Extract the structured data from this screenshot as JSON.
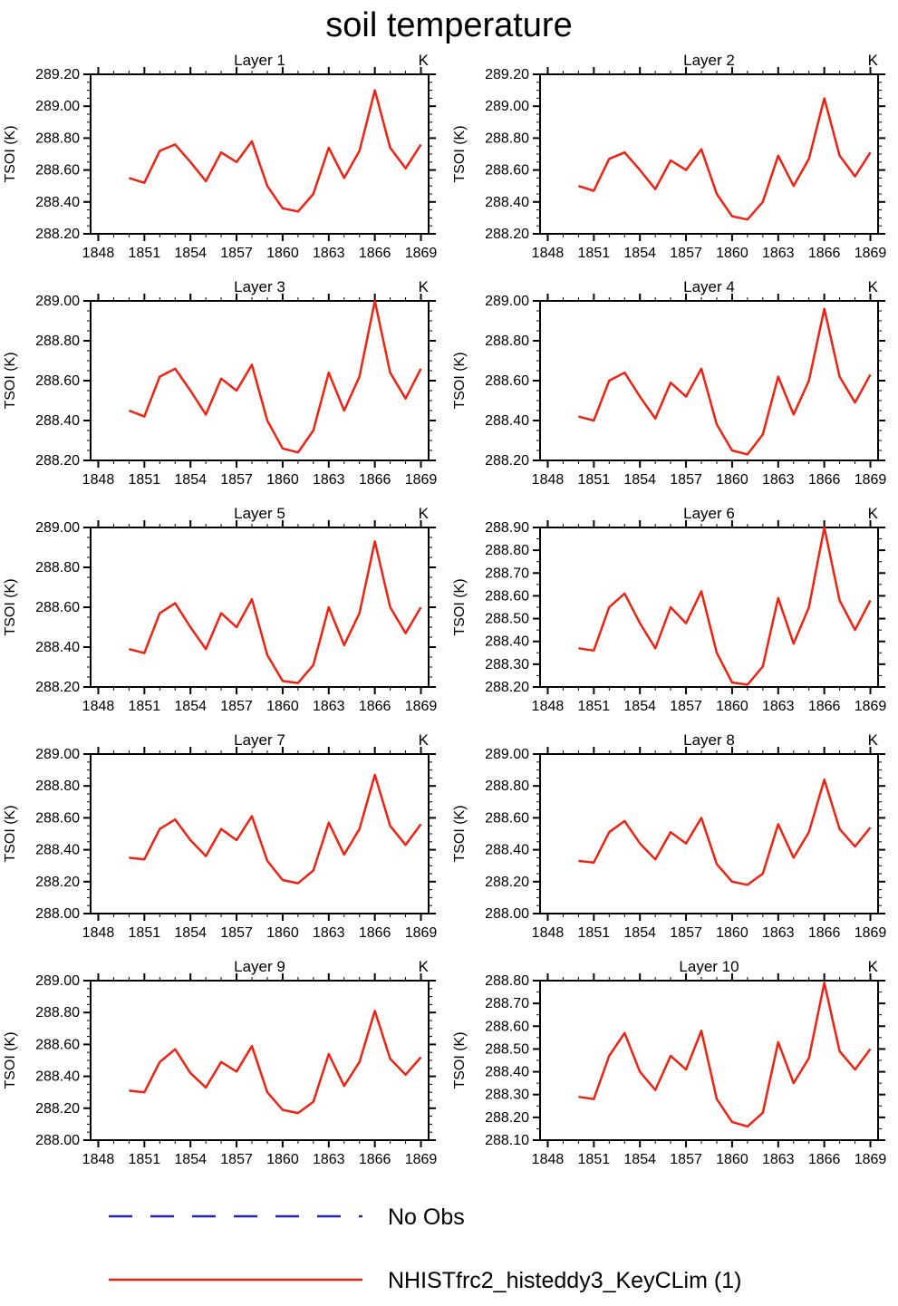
{
  "title": "soil temperature",
  "series_color": "#ee2211",
  "legend": [
    {
      "label": "No Obs",
      "color": "#2222cc",
      "style": "dashed"
    },
    {
      "label": "NHISTfrc2_histeddy3_KeyCLim (1)",
      "color": "#ee2211",
      "style": "solid"
    }
  ],
  "chart_data": [
    {
      "type": "line",
      "title": "Layer 1",
      "unit": "K",
      "ylabel": "TSOI (K)",
      "xlabel": "",
      "xlim": [
        1847.5,
        1869.5
      ],
      "xticks": [
        1848,
        1851,
        1854,
        1857,
        1860,
        1863,
        1866,
        1869
      ],
      "ylim": [
        288.2,
        289.2
      ],
      "ytick_step": 0.2,
      "x": [
        1850,
        1851,
        1852,
        1853,
        1854,
        1855,
        1856,
        1857,
        1858,
        1859,
        1860,
        1861,
        1862,
        1863,
        1864,
        1865,
        1866,
        1867,
        1868,
        1869
      ],
      "values": [
        288.55,
        288.52,
        288.72,
        288.76,
        288.65,
        288.53,
        288.71,
        288.65,
        288.78,
        288.5,
        288.36,
        288.34,
        288.45,
        288.74,
        288.55,
        288.72,
        289.1,
        288.74,
        288.61,
        288.76
      ]
    },
    {
      "type": "line",
      "title": "Layer 2",
      "unit": "K",
      "ylabel": "TSOI (K)",
      "xlabel": "",
      "xlim": [
        1847.5,
        1869.5
      ],
      "xticks": [
        1848,
        1851,
        1854,
        1857,
        1860,
        1863,
        1866,
        1869
      ],
      "ylim": [
        288.2,
        289.2
      ],
      "ytick_step": 0.2,
      "x": [
        1850,
        1851,
        1852,
        1853,
        1854,
        1855,
        1856,
        1857,
        1858,
        1859,
        1860,
        1861,
        1862,
        1863,
        1864,
        1865,
        1866,
        1867,
        1868,
        1869
      ],
      "values": [
        288.5,
        288.47,
        288.67,
        288.71,
        288.6,
        288.48,
        288.66,
        288.6,
        288.73,
        288.45,
        288.31,
        288.29,
        288.4,
        288.69,
        288.5,
        288.67,
        289.05,
        288.69,
        288.56,
        288.71
      ]
    },
    {
      "type": "line",
      "title": "Layer 3",
      "unit": "K",
      "ylabel": "TSOI (K)",
      "xlabel": "",
      "xlim": [
        1847.5,
        1869.5
      ],
      "xticks": [
        1848,
        1851,
        1854,
        1857,
        1860,
        1863,
        1866,
        1869
      ],
      "ylim": [
        288.2,
        289.0
      ],
      "ytick_step": 0.2,
      "x": [
        1850,
        1851,
        1852,
        1853,
        1854,
        1855,
        1856,
        1857,
        1858,
        1859,
        1860,
        1861,
        1862,
        1863,
        1864,
        1865,
        1866,
        1867,
        1868,
        1869
      ],
      "values": [
        288.45,
        288.42,
        288.62,
        288.66,
        288.55,
        288.43,
        288.61,
        288.55,
        288.68,
        288.4,
        288.26,
        288.24,
        288.35,
        288.64,
        288.45,
        288.62,
        289.0,
        288.64,
        288.51,
        288.66
      ]
    },
    {
      "type": "line",
      "title": "Layer 4",
      "unit": "K",
      "ylabel": "TSOI (K)",
      "xlabel": "",
      "xlim": [
        1847.5,
        1869.5
      ],
      "xticks": [
        1848,
        1851,
        1854,
        1857,
        1860,
        1863,
        1866,
        1869
      ],
      "ylim": [
        288.2,
        289.0
      ],
      "ytick_step": 0.2,
      "x": [
        1850,
        1851,
        1852,
        1853,
        1854,
        1855,
        1856,
        1857,
        1858,
        1859,
        1860,
        1861,
        1862,
        1863,
        1864,
        1865,
        1866,
        1867,
        1868,
        1869
      ],
      "values": [
        288.42,
        288.4,
        288.6,
        288.64,
        288.52,
        288.41,
        288.59,
        288.52,
        288.66,
        288.38,
        288.25,
        288.23,
        288.33,
        288.62,
        288.43,
        288.6,
        288.96,
        288.62,
        288.49,
        288.63
      ]
    },
    {
      "type": "line",
      "title": "Layer 5",
      "unit": "K",
      "ylabel": "TSOI (K)",
      "xlabel": "",
      "xlim": [
        1847.5,
        1869.5
      ],
      "xticks": [
        1848,
        1851,
        1854,
        1857,
        1860,
        1863,
        1866,
        1869
      ],
      "ylim": [
        288.2,
        289.0
      ],
      "ytick_step": 0.2,
      "x": [
        1850,
        1851,
        1852,
        1853,
        1854,
        1855,
        1856,
        1857,
        1858,
        1859,
        1860,
        1861,
        1862,
        1863,
        1864,
        1865,
        1866,
        1867,
        1868,
        1869
      ],
      "values": [
        288.39,
        288.37,
        288.57,
        288.62,
        288.5,
        288.39,
        288.57,
        288.5,
        288.64,
        288.36,
        288.23,
        288.22,
        288.31,
        288.6,
        288.41,
        288.57,
        288.93,
        288.6,
        288.47,
        288.6
      ]
    },
    {
      "type": "line",
      "title": "Layer 6",
      "unit": "K",
      "ylabel": "TSOI (K)",
      "xlabel": "",
      "xlim": [
        1847.5,
        1869.5
      ],
      "xticks": [
        1848,
        1851,
        1854,
        1857,
        1860,
        1863,
        1866,
        1869
      ],
      "ylim": [
        288.2,
        288.9
      ],
      "ytick_step": 0.1,
      "x": [
        1850,
        1851,
        1852,
        1853,
        1854,
        1855,
        1856,
        1857,
        1858,
        1859,
        1860,
        1861,
        1862,
        1863,
        1864,
        1865,
        1866,
        1867,
        1868,
        1869
      ],
      "values": [
        288.37,
        288.36,
        288.55,
        288.61,
        288.48,
        288.37,
        288.55,
        288.48,
        288.62,
        288.35,
        288.22,
        288.21,
        288.29,
        288.59,
        288.39,
        288.55,
        288.9,
        288.58,
        288.45,
        288.58
      ]
    },
    {
      "type": "line",
      "title": "Layer 7",
      "unit": "K",
      "ylabel": "TSOI (K)",
      "xlabel": "",
      "xlim": [
        1847.5,
        1869.5
      ],
      "xticks": [
        1848,
        1851,
        1854,
        1857,
        1860,
        1863,
        1866,
        1869
      ],
      "ylim": [
        288.0,
        289.0
      ],
      "ytick_step": 0.2,
      "x": [
        1850,
        1851,
        1852,
        1853,
        1854,
        1855,
        1856,
        1857,
        1858,
        1859,
        1860,
        1861,
        1862,
        1863,
        1864,
        1865,
        1866,
        1867,
        1868,
        1869
      ],
      "values": [
        288.35,
        288.34,
        288.53,
        288.59,
        288.46,
        288.36,
        288.53,
        288.46,
        288.61,
        288.33,
        288.21,
        288.19,
        288.27,
        288.57,
        288.37,
        288.53,
        288.87,
        288.55,
        288.43,
        288.56
      ]
    },
    {
      "type": "line",
      "title": "Layer 8",
      "unit": "K",
      "ylabel": "TSOI (K)",
      "xlabel": "",
      "xlim": [
        1847.5,
        1869.5
      ],
      "xticks": [
        1848,
        1851,
        1854,
        1857,
        1860,
        1863,
        1866,
        1869
      ],
      "ylim": [
        288.0,
        289.0
      ],
      "ytick_step": 0.2,
      "x": [
        1850,
        1851,
        1852,
        1853,
        1854,
        1855,
        1856,
        1857,
        1858,
        1859,
        1860,
        1861,
        1862,
        1863,
        1864,
        1865,
        1866,
        1867,
        1868,
        1869
      ],
      "values": [
        288.33,
        288.32,
        288.51,
        288.58,
        288.44,
        288.34,
        288.51,
        288.44,
        288.6,
        288.31,
        288.2,
        288.18,
        288.25,
        288.56,
        288.35,
        288.51,
        288.84,
        288.53,
        288.42,
        288.54
      ]
    },
    {
      "type": "line",
      "title": "Layer 9",
      "unit": "K",
      "ylabel": "TSOI (K)",
      "xlabel": "",
      "xlim": [
        1847.5,
        1869.5
      ],
      "xticks": [
        1848,
        1851,
        1854,
        1857,
        1860,
        1863,
        1866,
        1869
      ],
      "ylim": [
        288.0,
        289.0
      ],
      "ytick_step": 0.2,
      "x": [
        1850,
        1851,
        1852,
        1853,
        1854,
        1855,
        1856,
        1857,
        1858,
        1859,
        1860,
        1861,
        1862,
        1863,
        1864,
        1865,
        1866,
        1867,
        1868,
        1869
      ],
      "values": [
        288.31,
        288.3,
        288.49,
        288.57,
        288.42,
        288.33,
        288.49,
        288.43,
        288.59,
        288.3,
        288.19,
        288.17,
        288.24,
        288.54,
        288.34,
        288.49,
        288.81,
        288.51,
        288.41,
        288.52
      ]
    },
    {
      "type": "line",
      "title": "Layer 10",
      "unit": "K",
      "ylabel": "TSOI (K)",
      "xlabel": "",
      "xlim": [
        1847.5,
        1869.5
      ],
      "xticks": [
        1848,
        1851,
        1854,
        1857,
        1860,
        1863,
        1866,
        1869
      ],
      "ylim": [
        288.1,
        288.8
      ],
      "ytick_step": 0.1,
      "x": [
        1850,
        1851,
        1852,
        1853,
        1854,
        1855,
        1856,
        1857,
        1858,
        1859,
        1860,
        1861,
        1862,
        1863,
        1864,
        1865,
        1866,
        1867,
        1868,
        1869
      ],
      "values": [
        288.29,
        288.28,
        288.47,
        288.57,
        288.4,
        288.32,
        288.47,
        288.41,
        288.58,
        288.28,
        288.18,
        288.16,
        288.22,
        288.53,
        288.35,
        288.46,
        288.79,
        288.49,
        288.41,
        288.5
      ]
    }
  ]
}
